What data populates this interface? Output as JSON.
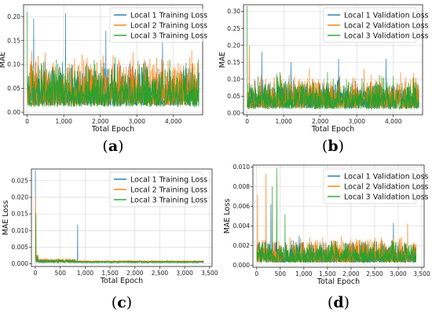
{
  "chart_data": [
    {
      "panel": "(a)",
      "panel_letter": "a",
      "type": "line",
      "xlabel": "Total Epoch",
      "ylabel": "MAE",
      "xlim": [
        -100,
        4800
      ],
      "ylim": [
        -0.005,
        0.225
      ],
      "xticks": [
        0,
        1000,
        2000,
        3000,
        4000
      ],
      "xtick_labels": [
        "0",
        "1,000",
        "2,000",
        "3,000",
        "4,000"
      ],
      "yticks": [
        0.0,
        0.05,
        0.1,
        0.15,
        0.2
      ],
      "ytick_labels": [
        "0.00",
        "0.05",
        "0.10",
        "0.15",
        "0.20"
      ],
      "grid": true,
      "legend_position": "top-right",
      "x_max": 4700,
      "series": [
        {
          "name": "Local 1 Training Loss",
          "color": "#1f77b4",
          "base": 0.015,
          "amp": 0.065,
          "spikes": [
            [
              180,
              0.196
            ],
            [
              1050,
              0.207
            ],
            [
              2150,
              0.17
            ],
            [
              3700,
              0.152
            ]
          ]
        },
        {
          "name": "Local 2 Training Loss",
          "color": "#ff7f0e",
          "base": 0.015,
          "amp": 0.075,
          "spikes": [
            [
              120,
              0.128
            ],
            [
              1500,
              0.12
            ],
            [
              2900,
              0.125
            ],
            [
              4500,
              0.13
            ]
          ]
        },
        {
          "name": "Local 3 Training Loss",
          "color": "#2ca02c",
          "base": 0.012,
          "amp": 0.07,
          "spikes": [
            [
              0,
              0.21
            ],
            [
              800,
              0.11
            ],
            [
              2400,
              0.115
            ],
            [
              3900,
              0.11
            ]
          ]
        }
      ]
    },
    {
      "panel": "(b)",
      "panel_letter": "b",
      "type": "line",
      "xlabel": "Total Epoch",
      "ylabel": "MAE",
      "xlim": [
        -100,
        4800
      ],
      "ylim": [
        -0.005,
        0.32
      ],
      "xticks": [
        0,
        1000,
        2000,
        3000,
        4000
      ],
      "xtick_labels": [
        "0",
        "1,000",
        "2,000",
        "3,000",
        "4,000"
      ],
      "yticks": [
        0.0,
        0.05,
        0.1,
        0.15,
        0.2,
        0.25,
        0.3
      ],
      "ytick_labels": [
        "0.00",
        "0.05",
        "0.10",
        "0.15",
        "0.20",
        "0.25",
        "0.30"
      ],
      "grid": true,
      "legend_position": "top-right",
      "x_max": 4700,
      "series": [
        {
          "name": "Local 1 Validation Loss",
          "color": "#1f77b4",
          "base": 0.015,
          "amp": 0.06,
          "spikes": [
            [
              400,
              0.18
            ],
            [
              2500,
              0.16
            ],
            [
              3800,
              0.16
            ],
            [
              1200,
              0.15
            ]
          ]
        },
        {
          "name": "Local 2 Validation Loss",
          "color": "#ff7f0e",
          "base": 0.015,
          "amp": 0.07,
          "spikes": [
            [
              60,
              0.2
            ],
            [
              1700,
              0.13
            ],
            [
              3200,
              0.13
            ],
            [
              4200,
              0.12
            ]
          ]
        },
        {
          "name": "Local 3 Validation Loss",
          "color": "#2ca02c",
          "base": 0.012,
          "amp": 0.07,
          "spikes": [
            [
              0,
              0.315
            ],
            [
              900,
              0.12
            ],
            [
              2200,
              0.12
            ],
            [
              4000,
              0.11
            ]
          ]
        }
      ]
    },
    {
      "panel": "(c)",
      "panel_letter": "c",
      "type": "line",
      "xlabel": "Total Epoch",
      "ylabel": "MAE Loss",
      "xlim": [
        -80,
        3550
      ],
      "ylim": [
        -0.0008,
        0.0285
      ],
      "xticks": [
        0,
        500,
        1000,
        1500,
        2000,
        2500,
        3000,
        3500
      ],
      "xtick_labels": [
        "0",
        "500",
        "1,000",
        "1,500",
        "2,000",
        "2,500",
        "3,000",
        "3,500"
      ],
      "yticks": [
        0.0,
        0.005,
        0.01,
        0.015,
        0.02,
        0.025
      ],
      "ytick_labels": [
        "0.000",
        "0.005",
        "0.010",
        "0.015",
        "0.020",
        "0.025"
      ],
      "grid": true,
      "legend_position": "top-right",
      "x_max": 3380,
      "series": [
        {
          "name": "Local 1 Training Loss",
          "color": "#1f77b4",
          "base": 0.0003,
          "amp": 0.0012,
          "spikes": [
            [
              0,
              0.028
            ],
            [
              850,
              0.0118
            ]
          ],
          "decay": true
        },
        {
          "name": "Local 2 Training Loss",
          "color": "#ff7f0e",
          "base": 0.0004,
          "amp": 0.0014,
          "spikes": [
            [
              5,
              0.02
            ]
          ],
          "decay": true
        },
        {
          "name": "Local 3 Training Loss",
          "color": "#2ca02c",
          "base": 0.0003,
          "amp": 0.0012,
          "spikes": [
            [
              10,
              0.015
            ]
          ],
          "decay": true
        }
      ]
    },
    {
      "panel": "(d)",
      "panel_letter": "d",
      "type": "line",
      "xlabel": "Total Epoch",
      "ylabel": "MAE Loss",
      "xlim": [
        -80,
        3550
      ],
      "ylim": [
        -0.0002,
        0.0102
      ],
      "xticks": [
        0,
        500,
        1000,
        1500,
        2000,
        2500,
        3000,
        3500
      ],
      "xtick_labels": [
        "0",
        "500",
        "1,000",
        "1,500",
        "2,000",
        "2,500",
        "3,000",
        "3,500"
      ],
      "yticks": [
        0.0,
        0.002,
        0.004,
        0.006,
        0.008,
        0.01
      ],
      "ytick_labels": [
        "0.000",
        "0.002",
        "0.004",
        "0.006",
        "0.008",
        "0.010"
      ],
      "grid": true,
      "legend_position": "top-right",
      "x_max": 3380,
      "series": [
        {
          "name": "Local 1 Validation Loss",
          "color": "#1f77b4",
          "base": 0.0003,
          "amp": 0.0016,
          "spikes": [
            [
              300,
              0.0062
            ],
            [
              900,
              0.003
            ],
            [
              2900,
              0.0043
            ]
          ]
        },
        {
          "name": "Local 2 Validation Loss",
          "color": "#ff7f0e",
          "base": 0.0003,
          "amp": 0.0018,
          "spikes": [
            [
              20,
              0.0072
            ],
            [
              200,
              0.0093
            ],
            [
              1400,
              0.0028
            ],
            [
              3200,
              0.0042
            ]
          ]
        },
        {
          "name": "Local 3 Validation Loss",
          "color": "#2ca02c",
          "base": 0.0003,
          "amp": 0.0016,
          "spikes": [
            [
              430,
              0.0099
            ],
            [
              330,
              0.008
            ],
            [
              600,
              0.0052
            ]
          ]
        }
      ]
    }
  ]
}
